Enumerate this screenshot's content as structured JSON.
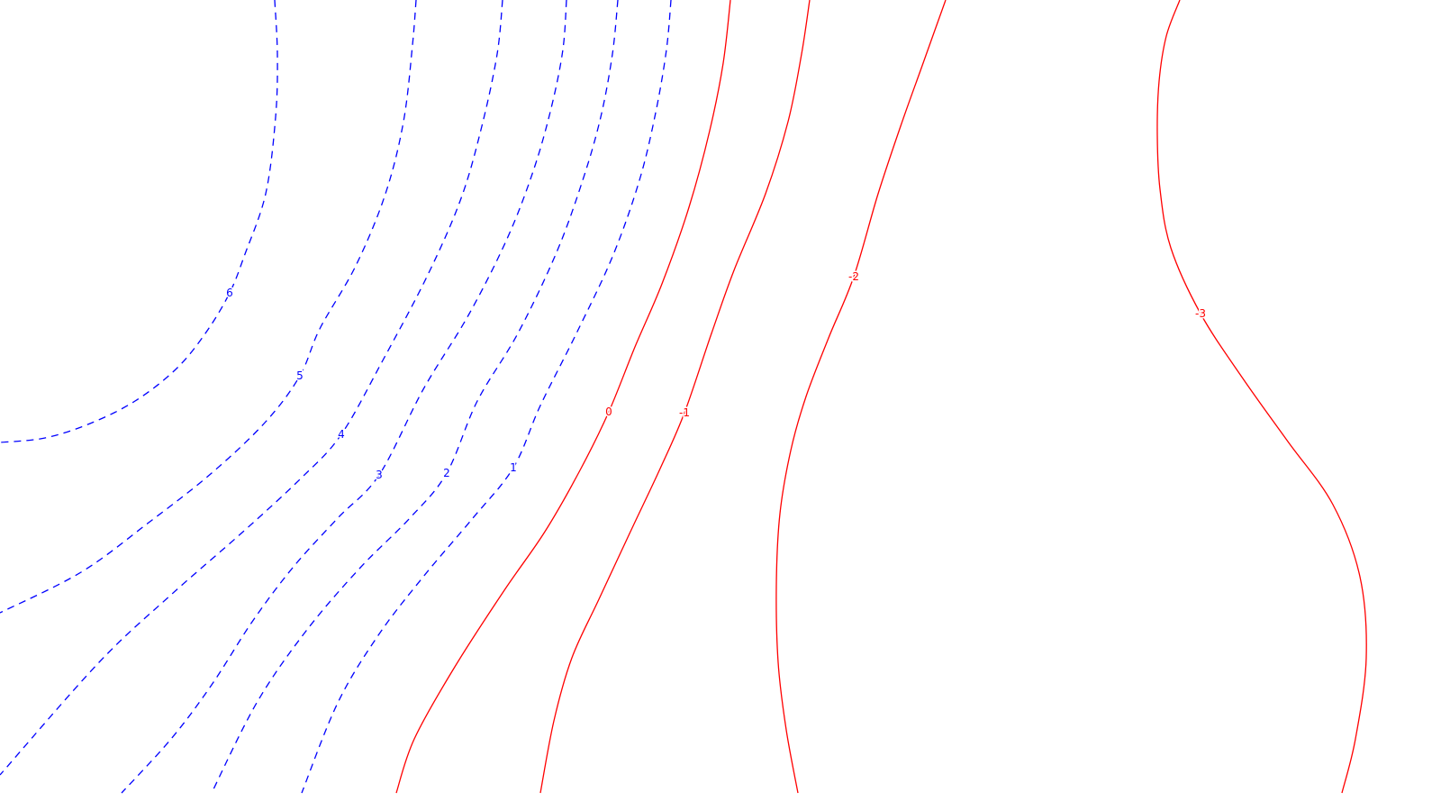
{
  "chart_data": {
    "type": "contour",
    "title": "",
    "xlabel": "",
    "ylabel": "",
    "axes_visible": false,
    "grid": false,
    "legend": "none",
    "colors": {
      "positive": "#0000ff",
      "nonpositive": "#ff0000",
      "background": "#ffffff"
    },
    "line_styles": {
      "positive": "dashed",
      "nonpositive": "solid"
    },
    "levels": [
      {
        "value": 6,
        "label": "6"
      },
      {
        "value": 5,
        "label": "5"
      },
      {
        "value": 4,
        "label": "4"
      },
      {
        "value": 3,
        "label": "3"
      },
      {
        "value": 2,
        "label": "2"
      },
      {
        "value": 1,
        "label": "1"
      },
      {
        "value": 0,
        "label": "0"
      },
      {
        "value": -1,
        "label": "-1"
      },
      {
        "value": -2,
        "label": "-2"
      },
      {
        "value": -3,
        "label": "-3"
      }
    ]
  }
}
